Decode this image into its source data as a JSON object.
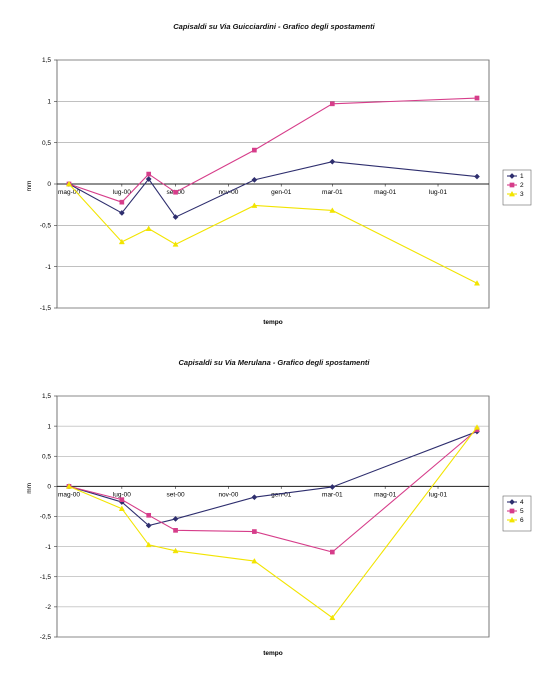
{
  "chart_data": [
    {
      "type": "line",
      "title": "Capisaldi su Via Guicciardini - Grafico degli spostamenti",
      "xlabel": "tempo",
      "ylabel": "mm",
      "ylim": [
        -1.5,
        1.5
      ],
      "yticks": [
        "1,5",
        "1",
        "0,5",
        "0",
        "-0,5",
        "-1",
        "-1,5"
      ],
      "xtick_labels": [
        "mag-00",
        "lug-00",
        "set-00",
        "nov-00",
        "gen-01",
        "mar-01",
        "mag-01",
        "lug-01"
      ],
      "grid": true,
      "legend_position": "right",
      "series": [
        {
          "name": "1",
          "color": "#2e2e6e",
          "marker": "diamond",
          "x": [
            "2000-05-01",
            "2000-07-01",
            "2000-08-01",
            "2000-09-01",
            "2000-12-01",
            "2001-03-01",
            "2001-08-15"
          ],
          "values": [
            0,
            -0.35,
            0.06,
            -0.4,
            0.05,
            0.27,
            0.09
          ]
        },
        {
          "name": "2",
          "color": "#d63d8a",
          "marker": "square",
          "x": [
            "2000-05-01",
            "2000-07-01",
            "2000-08-01",
            "2000-09-01",
            "2000-12-01",
            "2001-03-01",
            "2001-08-15"
          ],
          "values": [
            0,
            -0.22,
            0.12,
            -0.1,
            0.41,
            0.97,
            1.04
          ]
        },
        {
          "name": "3",
          "color": "#f2e400",
          "marker": "triangle",
          "x": [
            "2000-05-01",
            "2000-07-01",
            "2000-08-01",
            "2000-09-01",
            "2000-12-01",
            "2001-03-01",
            "2001-08-15"
          ],
          "values": [
            0,
            -0.7,
            -0.54,
            -0.73,
            -0.26,
            -0.32,
            -1.2
          ]
        }
      ]
    },
    {
      "type": "line",
      "title": "Capisaldi su Via Merulana - Grafico degli spostamenti",
      "xlabel": "tempo",
      "ylabel": "mm",
      "ylim": [
        -2.5,
        1.5
      ],
      "yticks": [
        "1,5",
        "1",
        "0,5",
        "0",
        "-0,5",
        "-1",
        "-1,5",
        "-2",
        "-2,5"
      ],
      "xtick_labels": [
        "mag-00",
        "lug-00",
        "set-00",
        "nov-00",
        "gen-01",
        "mar-01",
        "mag-01",
        "lug-01"
      ],
      "grid": true,
      "legend_position": "right",
      "series": [
        {
          "name": "4",
          "color": "#2e2e6e",
          "marker": "diamond",
          "x": [
            "2000-05-01",
            "2000-07-01",
            "2000-08-01",
            "2000-09-01",
            "2000-12-01",
            "2001-03-01",
            "2001-08-15"
          ],
          "values": [
            0,
            -0.26,
            -0.65,
            -0.54,
            -0.18,
            -0.01,
            0.91
          ]
        },
        {
          "name": "5",
          "color": "#d63d8a",
          "marker": "square",
          "x": [
            "2000-05-01",
            "2000-07-01",
            "2000-08-01",
            "2000-09-01",
            "2000-12-01",
            "2001-03-01",
            "2001-08-15"
          ],
          "values": [
            0,
            -0.22,
            -0.48,
            -0.73,
            -0.75,
            -1.09,
            0.94
          ]
        },
        {
          "name": "6",
          "color": "#f2e400",
          "marker": "triangle",
          "x": [
            "2000-05-01",
            "2000-07-01",
            "2000-08-01",
            "2000-09-01",
            "2000-12-01",
            "2001-03-01",
            "2001-08-15"
          ],
          "values": [
            0,
            -0.37,
            -0.97,
            -1.07,
            -1.24,
            -2.18,
            0.98
          ]
        }
      ]
    }
  ]
}
